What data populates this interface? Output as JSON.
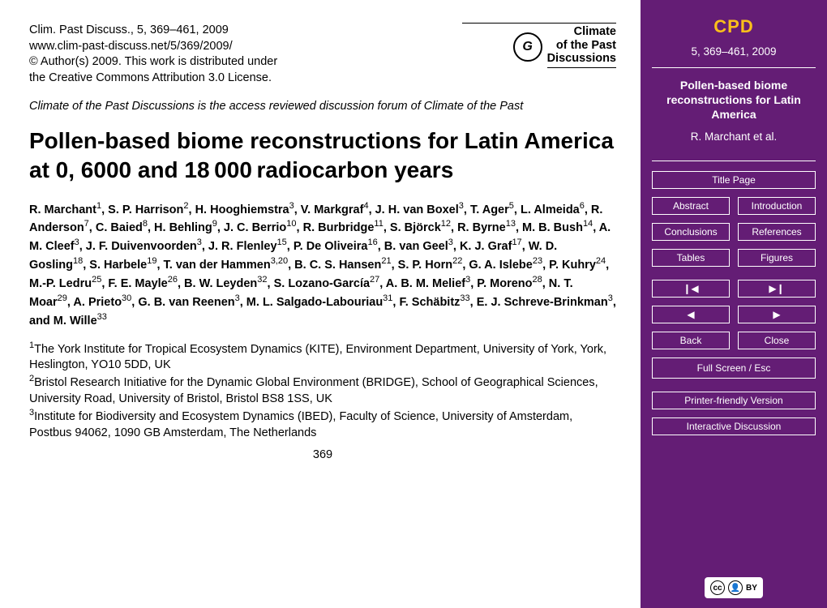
{
  "header": {
    "line1": "Clim. Past Discuss., 5, 369–461, 2009",
    "line2": "www.clim-past-discuss.net/5/369/2009/",
    "line3": "© Author(s) 2009. This work is distributed under",
    "line4": "the Creative Commons Attribution 3.0 License.",
    "journal1": "Climate",
    "journal2": "of the Past",
    "journal3": "Discussions",
    "logoglyph": "G"
  },
  "note": "Climate of the Past Discussions is the access reviewed discussion forum of Climate of the Past",
  "title": "Pollen-based biome reconstructions for Latin America at 0, 6000 and 18 000 radiocarbon years",
  "authors_html": "R. Marchant<sup>1</sup>, S. P. Harrison<sup>2</sup>, H. Hooghiemstra<sup>3</sup>, V. Markgraf<sup>4</sup>, J. H. van Boxel<sup>3</sup>, T. Ager<sup>5</sup>, L. Almeida<sup>6</sup>, R. Anderson<sup>7</sup>, C. Baied<sup>8</sup>, H. Behling<sup>9</sup>, J. C. Berrio<sup>10</sup>, R. Burbridge<sup>11</sup>, S. Björck<sup>12</sup>, R. Byrne<sup>13</sup>, M. B. Bush<sup>14</sup>, A. M. Cleef<sup>3</sup>, J. F. Duivenvoorden<sup>3</sup>, J. R. Flenley<sup>15</sup>, P. De Oliveira<sup>16</sup>, B. van Geel<sup>3</sup>, K. J. Graf<sup>17</sup>, W. D. Gosling<sup>18</sup>, S. Harbele<sup>19</sup>, T. van der Hammen<sup>3,20</sup>, B. C. S. Hansen<sup>21</sup>, S. P. Horn<sup>22</sup>, G. A. Islebe<sup>23</sup>, P. Kuhry<sup>24</sup>, M.-P. Ledru<sup>25</sup>, F. E. Mayle<sup>26</sup>, B. W. Leyden<sup>32</sup>, S. Lozano-García<sup>27</sup>, A. B. M. Melief<sup>3</sup>, P. Moreno<sup>28</sup>, N. T. Moar<sup>29</sup>, A. Prieto<sup>30</sup>, G. B. van Reenen<sup>3</sup>, M. L. Salgado-Labouriau<sup>31</sup>, F. Schäbitz<sup>33</sup>, E. J. Schreve-Brinkman<sup>3</sup>, and M. Wille<sup>33</sup>",
  "affils_html": "<sup>1</sup>The York Institute for Tropical Ecosystem Dynamics (KITE), Environment Department, University of York, York, Heslington, YO10 5DD, UK<br><sup>2</sup>Bristol Research Initiative for the Dynamic Global Environment (BRIDGE), School of Geographical Sciences, University Road, University of Bristol, Bristol BS8 1SS, UK<br><sup>3</sup>Institute for Biodiversity and Ecosystem Dynamics (IBED), Faculty of Science, University of Amsterdam, Postbus 94062, 1090 GB Amsterdam, The Netherlands",
  "pagenum": "369",
  "sidebar": {
    "cpd": "CPD",
    "issue": "5, 369–461, 2009",
    "title": "Pollen-based biome reconstructions for Latin America",
    "authors": "R. Marchant et al.",
    "btn": {
      "titlepage": "Title Page",
      "abstract": "Abstract",
      "intro": "Introduction",
      "concl": "Conclusions",
      "refs": "References",
      "tables": "Tables",
      "figs": "Figures",
      "first": "◀█",
      "last": "█▶",
      "prev": "◀",
      "next": "▶",
      "back": "Back",
      "close": "Close",
      "full": "Full Screen / Esc",
      "print": "Printer-friendly Version",
      "discuss": "Interactive Discussion"
    },
    "cc": {
      "cc": "cc",
      "by": "BY",
      "icon": "ⓘ"
    }
  }
}
